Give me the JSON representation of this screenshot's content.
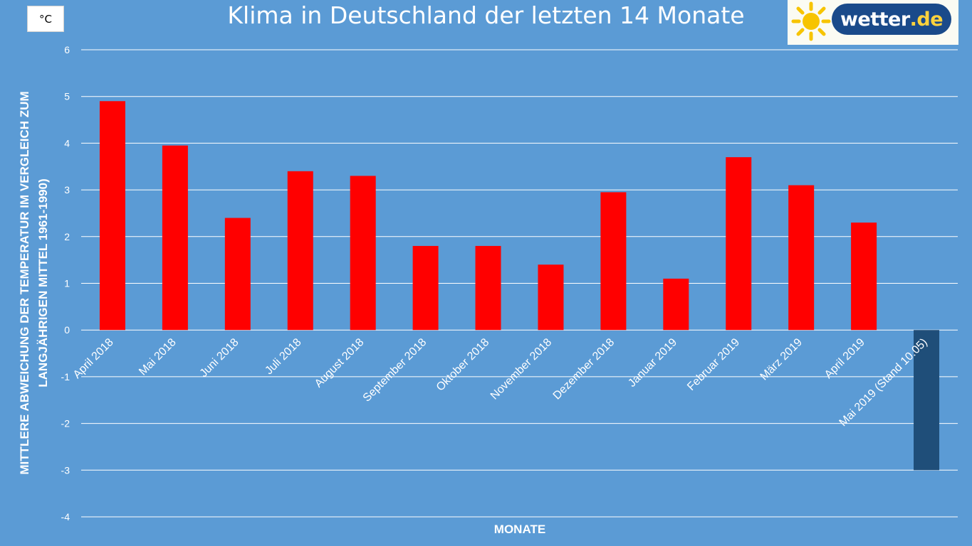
{
  "header": {
    "unit": "°C",
    "title": "Klima in Deutschland der letzten 14 Monate",
    "logo": {
      "brand": "wetter",
      "tld": ".de",
      "icon": "sun-icon"
    }
  },
  "colors": {
    "background": "#5b9bd5",
    "positive": "#ff0000",
    "negative": "#1f4e79",
    "gridline": "#ffffff"
  },
  "chart_data": {
    "type": "bar",
    "title": "Klima in Deutschland der letzten 14 Monate",
    "xlabel": "MONATE",
    "ylabel_line1": "MITTLERE ABWEICHUNG DER TEMPERATUR IM VERGLEICH ZUM",
    "ylabel_line2": "LANGJÄHRIGEN MITTEL 1961-1990)",
    "unit": "°C",
    "ylim": [
      -4,
      6
    ],
    "yticks": [
      -4,
      -3,
      -2,
      -1,
      0,
      1,
      2,
      3,
      4,
      5,
      6
    ],
    "grid": true,
    "legend": "none",
    "categories": [
      "April 2018",
      "Mai 2018",
      "Juni 2018",
      "Juli 2018",
      "August 2018",
      "September 2018",
      "Oktober 2018",
      "November 2018",
      "Dezember 2018",
      "Januar 2019",
      "Februar 2019",
      "März 2019",
      "April 2019",
      "Mai 2019 (Stand 10.05)"
    ],
    "values": [
      4.9,
      3.95,
      2.4,
      3.4,
      3.3,
      1.8,
      1.8,
      1.4,
      2.95,
      1.1,
      3.7,
      3.1,
      2.3,
      -3.0
    ]
  }
}
